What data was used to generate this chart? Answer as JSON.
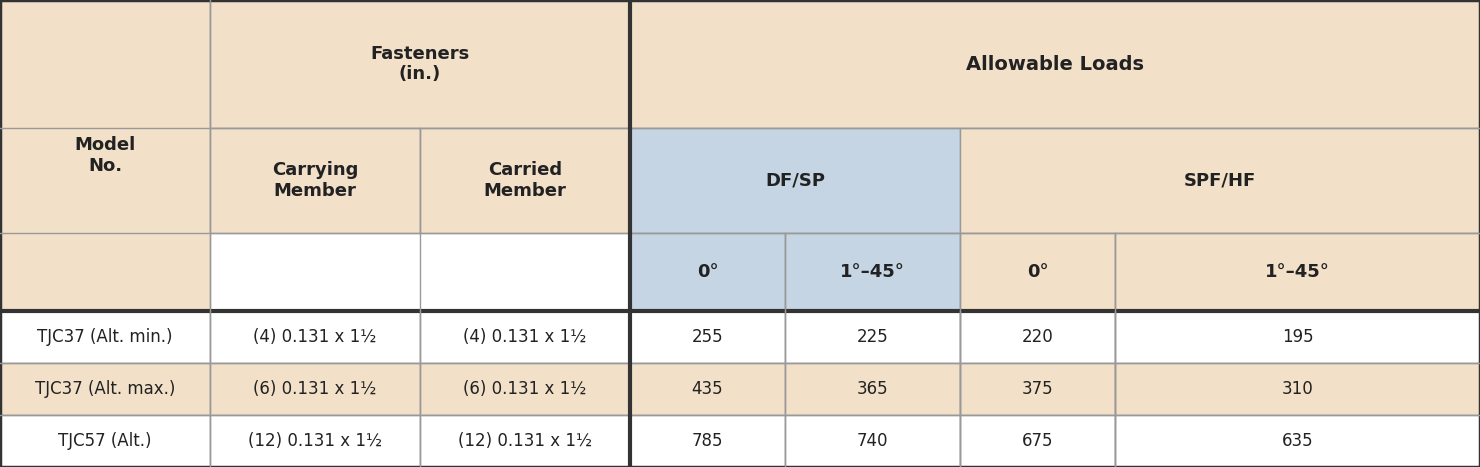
{
  "bg_color": "#f2e0c8",
  "dfsp_bg_color": "#c5d5e4",
  "white_bg": "#ffffff",
  "tan_row": "#f2e0c8",
  "border_color": "#999999",
  "thick_border": "#333333",
  "data_rows": [
    {
      "model": "TJC37 (Alt. min.)",
      "carrying": "(4) 0.131 x 1½",
      "carried": "(4) 0.131 x 1½",
      "dfsp_0": "255",
      "dfsp_45": "225",
      "spfhf_0": "220",
      "spfhf_45": "195",
      "row_bg": "#ffffff"
    },
    {
      "model": "TJC37 (Alt. max.)",
      "carrying": "(6) 0.131 x 1½",
      "carried": "(6) 0.131 x 1½",
      "dfsp_0": "435",
      "dfsp_45": "365",
      "spfhf_0": "375",
      "spfhf_45": "310",
      "row_bg": "#f2e0c8"
    },
    {
      "model": "TJC57 (Alt.)",
      "carrying": "(12) 0.131 x 1½",
      "carried": "(12) 0.131 x 1½",
      "dfsp_0": "785",
      "dfsp_45": "740",
      "spfhf_0": "675",
      "spfhf_45": "635",
      "row_bg": "#ffffff"
    }
  ]
}
